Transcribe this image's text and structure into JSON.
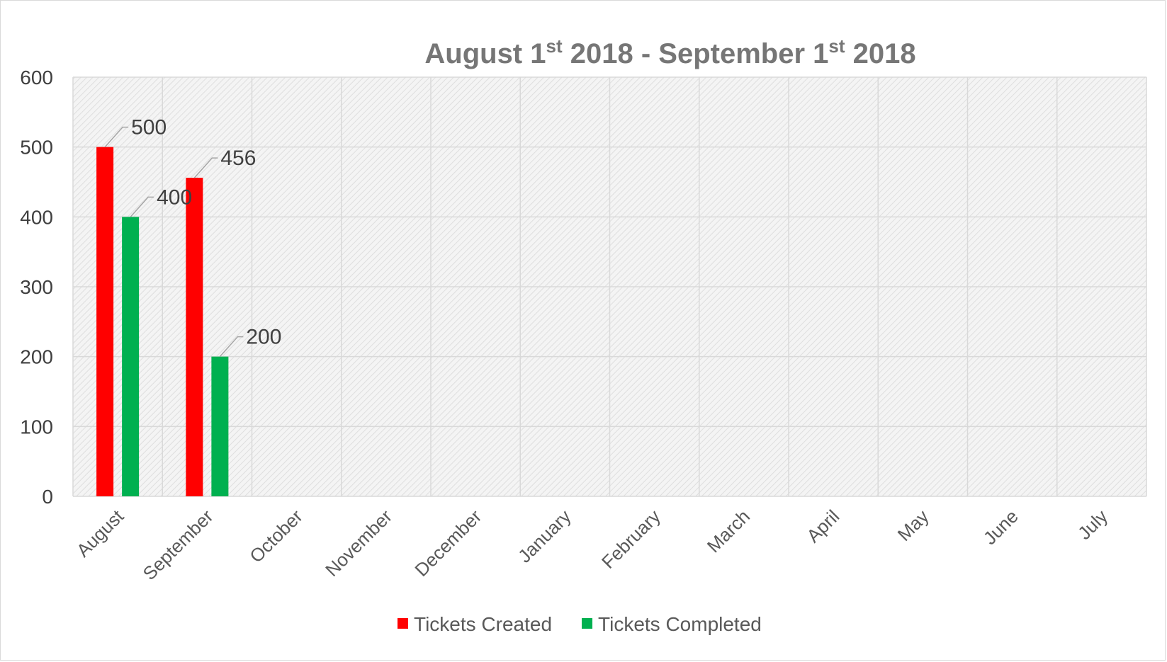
{
  "chart_data": {
    "type": "bar",
    "title": {
      "parts": [
        {
          "text": "August 1",
          "sup": false
        },
        {
          "text": "st",
          "sup": true
        },
        {
          "text": " 2018 - September 1",
          "sup": false
        },
        {
          "text": "st",
          "sup": true
        },
        {
          "text": "  2018",
          "sup": false
        }
      ]
    },
    "categories": [
      "August",
      "September",
      "October",
      "November",
      "December",
      "January",
      "February",
      "March",
      "April",
      "May",
      "June",
      "July"
    ],
    "series": [
      {
        "name": "Tickets Created",
        "color": "#ff0000",
        "values": [
          500,
          456,
          null,
          null,
          null,
          null,
          null,
          null,
          null,
          null,
          null,
          null
        ]
      },
      {
        "name": "Tickets Completed",
        "color": "#00b050",
        "values": [
          400,
          200,
          null,
          null,
          null,
          null,
          null,
          null,
          null,
          null,
          null,
          null
        ]
      }
    ],
    "ylim": [
      0,
      600
    ],
    "yticks": [
      0,
      100,
      200,
      300,
      400,
      500,
      600
    ],
    "grid": true,
    "legend_position": "bottom",
    "data_labels": true
  }
}
